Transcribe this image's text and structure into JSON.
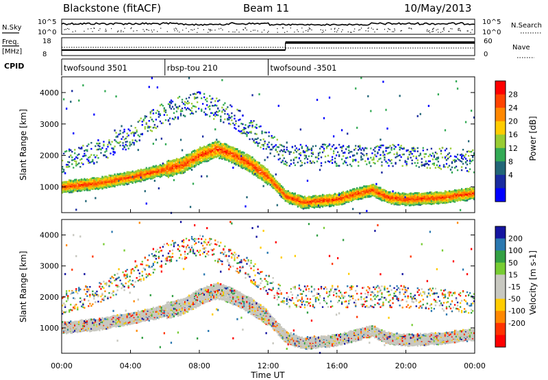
{
  "header": {
    "station": "Blackstone (fitACF)",
    "beam": "Beam 11",
    "date": "10/May/2013"
  },
  "left_labels": {
    "nsky": "N.Sky",
    "freq_line1": "Freq.",
    "freq_line2": "[MHz]",
    "cpid": "CPID"
  },
  "right_labels": {
    "nsearch": "N.Search",
    "nave": "Nave"
  },
  "noise_axis": {
    "left_ticks": [
      "10^5",
      "10^0"
    ],
    "right_ticks": [
      "10^5",
      "10^0"
    ]
  },
  "freq_axis": {
    "left_ticks": [
      "18",
      "8"
    ],
    "right_ticks": [
      "60",
      "0"
    ]
  },
  "cpid_segments": [
    {
      "label": "twofsound 3501",
      "start_hour": 0,
      "end_hour": 6
    },
    {
      "label": "rbsp-tou 210",
      "start_hour": 6,
      "end_hour": 12
    },
    {
      "label": "twofsound -3501",
      "start_hour": 12,
      "end_hour": 24
    }
  ],
  "colorbars": {
    "power": {
      "title": "Power [dB]",
      "ticks": [
        "28",
        "24",
        "20",
        "16",
        "12",
        "8",
        "4"
      ],
      "colors": [
        "#ff0000",
        "#ff4400",
        "#ff8800",
        "#ffcc00",
        "#99cc33",
        "#33aa55",
        "#226677",
        "#1a2ca0",
        "#0000ff"
      ]
    },
    "velocity": {
      "title": "Velocity [m s-1]",
      "ticks": [
        "200",
        "100",
        "50",
        "15",
        "-15",
        "-50",
        "-100",
        "-200"
      ],
      "colors": [
        "#1515a0",
        "#2a78b0",
        "#33a044",
        "#77cc33",
        "#c8c8c0",
        "#c8c8c0",
        "#ffcc00",
        "#ff8800",
        "#ff3300",
        "#ff0000"
      ]
    }
  },
  "chart_data": [
    {
      "type": "heatmap",
      "title": "",
      "ylabel": "Slant Range [km]",
      "xlabel": "Time UT",
      "x_ticks": [
        "00:00",
        "04:00",
        "08:00",
        "12:00",
        "16:00",
        "20:00",
        "00:00"
      ],
      "xlim_hours": [
        0,
        24
      ],
      "y_ticks": [
        "1000",
        "2000",
        "3000",
        "4000"
      ],
      "ylim_km": [
        180,
        4500
      ],
      "quantity": "Power [dB]",
      "main_echo_band": {
        "hours": [
          0,
          2,
          4,
          6,
          7,
          8,
          9,
          10,
          11,
          12,
          13,
          14,
          16,
          18,
          19,
          20,
          22,
          24
        ],
        "range_km": [
          1000,
          1100,
          1300,
          1550,
          1700,
          2000,
          2200,
          2000,
          1700,
          1300,
          700,
          500,
          600,
          900,
          650,
          600,
          650,
          800
        ]
      },
      "upper_echo_band": {
        "hours": [
          0,
          2,
          4,
          6,
          8,
          10,
          12,
          13,
          16,
          20,
          24
        ],
        "range_km": [
          1800,
          2100,
          2600,
          3400,
          3700,
          3200,
          2400,
          2000,
          2000,
          2000,
          1800
        ]
      }
    },
    {
      "type": "heatmap",
      "title": "",
      "ylabel": "Slant Range [km]",
      "xlabel": "Time UT",
      "x_ticks": [
        "00:00",
        "04:00",
        "08:00",
        "12:00",
        "16:00",
        "20:00",
        "00:00"
      ],
      "xlim_hours": [
        0,
        24
      ],
      "y_ticks": [
        "1000",
        "2000",
        "3000",
        "4000"
      ],
      "ylim_km": [
        180,
        4500
      ],
      "quantity": "Velocity [m s-1]",
      "ground_scatter": "grey (|v| < 15 m/s) along main echo band"
    }
  ]
}
